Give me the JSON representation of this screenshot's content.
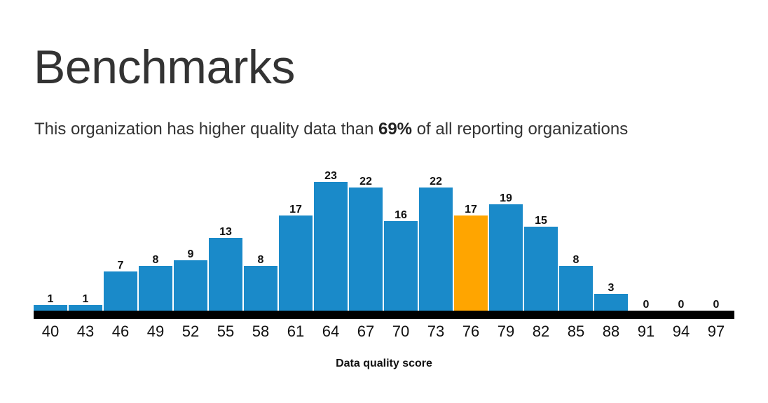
{
  "header": {
    "title": "Benchmarks",
    "subtitle_pre": "This organization has higher quality data than ",
    "subtitle_pct": "69%",
    "subtitle_post": " of all reporting organizations"
  },
  "colors": {
    "bar": "#1a8ac9",
    "highlight": "#ffa500",
    "axis": "#000000"
  },
  "chart_data": {
    "type": "bar",
    "title": "",
    "xlabel": "Data quality score",
    "ylabel": "",
    "categories": [
      "40",
      "43",
      "46",
      "49",
      "52",
      "55",
      "58",
      "61",
      "64",
      "67",
      "70",
      "73",
      "76",
      "79",
      "82",
      "85",
      "88",
      "91",
      "94",
      "97"
    ],
    "values": [
      1,
      1,
      7,
      8,
      9,
      13,
      8,
      17,
      23,
      22,
      16,
      22,
      17,
      19,
      15,
      8,
      3,
      0,
      0,
      0
    ],
    "highlight_category": "76",
    "ylim": [
      0,
      23
    ],
    "grid": false,
    "legend": "none"
  }
}
